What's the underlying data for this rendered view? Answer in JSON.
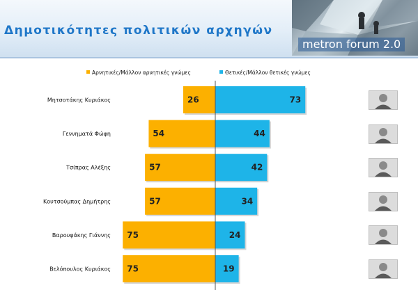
{
  "page": {
    "title": "Δημοτικότητες πολιτικών αρχηγών",
    "logo_text": "metron forum 2.0"
  },
  "colors": {
    "negative": "#fcb000",
    "positive": "#1eb4e8",
    "title": "#1f77c8"
  },
  "chart_data": {
    "type": "bar",
    "orientation": "horizontal-diverging",
    "categories": [
      "Μητσοτάκης Κυριάκος",
      "Γεννηματά Φώφη",
      "Τσίπρας Αλέξης",
      "Κουτσούμπας Δημήτρης",
      "Βαρουφάκης Γιάννης",
      "Βελόπουλος Κυριάκος"
    ],
    "series": [
      {
        "name": "Αρνητικές/Μάλλον αρνητικές γνώμες",
        "values": [
          26,
          54,
          57,
          57,
          75,
          75
        ]
      },
      {
        "name": "Θετικές/Μάλλον θετικές γνώμες",
        "values": [
          73,
          44,
          42,
          34,
          24,
          19
        ]
      }
    ],
    "legend_position": "top",
    "photos": [
      "leader-photo-1-icon",
      "leader-photo-2-icon",
      "leader-photo-3-icon",
      "leader-photo-4-icon",
      "leader-photo-5-icon",
      "leader-photo-6-icon"
    ]
  }
}
